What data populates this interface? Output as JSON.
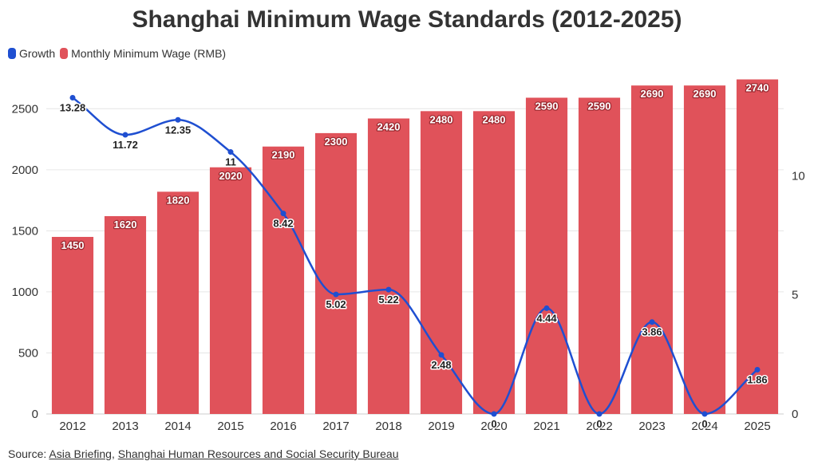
{
  "chart_data": {
    "type": "bar",
    "title": "Shanghai Minimum Wage Standards (2012-2025)",
    "categories": [
      "2012",
      "2013",
      "2014",
      "2015",
      "2016",
      "2017",
      "2018",
      "2019",
      "2020",
      "2021",
      "2022",
      "2023",
      "2024",
      "2025"
    ],
    "series": [
      {
        "name": "Monthly Minimum Wage (RMB)",
        "type": "bar",
        "axis": "left",
        "color": "#e0525a",
        "values": [
          1450,
          1620,
          1820,
          2020,
          2190,
          2300,
          2420,
          2480,
          2480,
          2590,
          2590,
          2690,
          2690,
          2740
        ],
        "labels": [
          "1450",
          "1620",
          "1820",
          "2020",
          "2190",
          "2300",
          "2420",
          "2480",
          "2480",
          "2590",
          "2590",
          "2690",
          "2690",
          "2740"
        ]
      },
      {
        "name": "Growth",
        "type": "line",
        "axis": "right",
        "color": "#1f4fd1",
        "values": [
          13.28,
          11.72,
          12.35,
          11,
          8.42,
          5.02,
          5.22,
          2.48,
          0,
          4.44,
          0,
          3.86,
          0,
          1.86
        ],
        "labels": [
          "13.28",
          "11.72",
          "12.35",
          "11",
          "8.42",
          "5.02",
          "5.22",
          "2.48",
          "0",
          "4.44",
          "0",
          "3.86",
          "0",
          "1.86"
        ]
      }
    ],
    "y_left": {
      "min": 0,
      "max": 2750,
      "ticks": [
        "0",
        "500",
        "1000",
        "1500",
        "2000",
        "2500"
      ]
    },
    "y_right": {
      "min": 0,
      "max": 14.1,
      "ticks": [
        "0",
        "5",
        "10"
      ]
    },
    "legend": {
      "position": "top-left",
      "items": [
        "Growth",
        "Monthly Minimum Wage (RMB)"
      ]
    },
    "grid": true
  },
  "source": {
    "prefix": "Source: ",
    "link1": "Asia Briefing",
    "separator": ", ",
    "link2": "Shanghai Human Resources and Social Security Bureau"
  }
}
